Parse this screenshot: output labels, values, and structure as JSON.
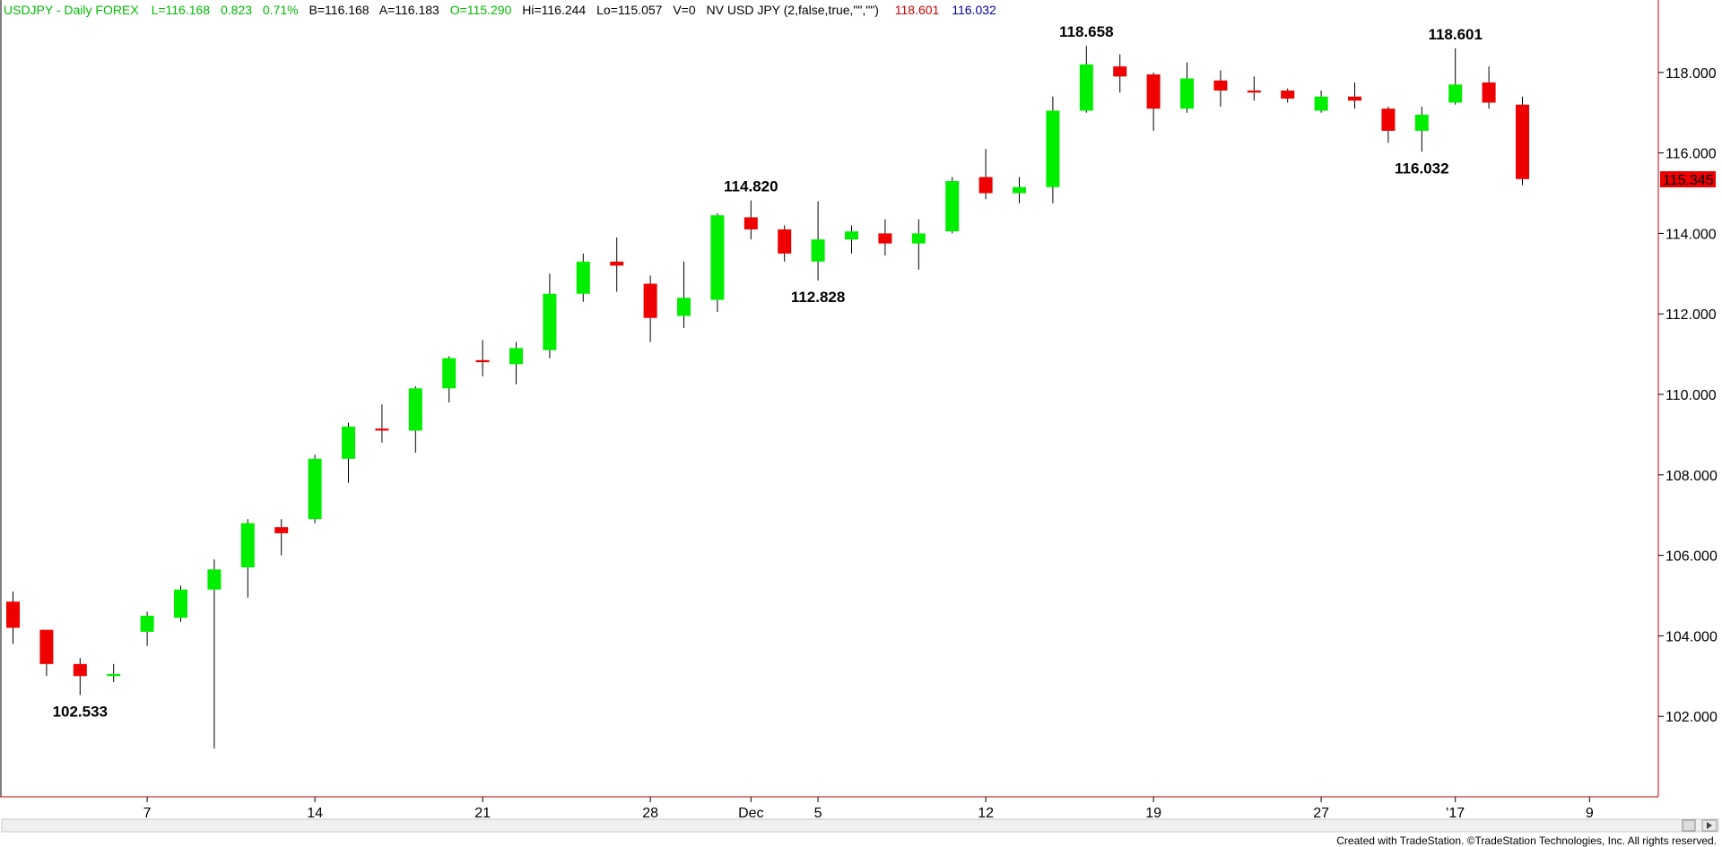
{
  "header": {
    "symbol_desc": "USDJPY - Daily  FOREX",
    "last": "L=116.168",
    "change": "0.823",
    "change_pct": "0.71%",
    "bid": "B=116.168",
    "ask": "A=116.183",
    "open": "O=115.290",
    "high": "Hi=116.244",
    "low": "Lo=115.057",
    "volume": "V=0",
    "indicator": "NV USD JPY (2,false,true,\"\",\"\")",
    "ind_high": "118.601",
    "ind_low": "116.032"
  },
  "footer": {
    "credit": "Created with TradeStation. ©TradeStation Technologies, Inc. All rights reserved."
  },
  "colors": {
    "up": "#00ee00",
    "down": "#ee0000",
    "header_text": "#00bb00",
    "ind_high": "#cc0000",
    "ind_low": "#000099",
    "axis_line": "#cc0000",
    "price_tag_bg": "#ee0000",
    "price_tag_text": "#ffffff"
  },
  "chart_data": {
    "type": "candlestick",
    "symbol": "USDJPY",
    "interval": "Daily",
    "ylim": [
      100.0,
      119.8
    ],
    "yticks": [
      "102.000",
      "104.000",
      "106.000",
      "108.000",
      "110.000",
      "112.000",
      "114.000",
      "116.000",
      "118.000"
    ],
    "xlabels": [
      {
        "bar": 4,
        "label": "7"
      },
      {
        "bar": 9,
        "label": "14"
      },
      {
        "bar": 14,
        "label": "21"
      },
      {
        "bar": 19,
        "label": "28"
      },
      {
        "bar": 22,
        "label": "Dec"
      },
      {
        "bar": 24,
        "label": "5"
      },
      {
        "bar": 29,
        "label": "12"
      },
      {
        "bar": 34,
        "label": "19"
      },
      {
        "bar": 39,
        "label": "27"
      },
      {
        "bar": 43,
        "label": "'17"
      },
      {
        "bar": 47,
        "label": "9"
      }
    ],
    "last_price": "115.345",
    "bars": [
      {
        "o": 104.85,
        "h": 105.1,
        "l": 103.8,
        "c": 104.2
      },
      {
        "o": 104.15,
        "h": 104.15,
        "l": 103.0,
        "c": 103.3
      },
      {
        "o": 103.3,
        "h": 103.45,
        "l": 102.53,
        "c": 103.0
      },
      {
        "o": 103.0,
        "h": 103.3,
        "l": 102.85,
        "c": 103.05
      },
      {
        "o": 104.1,
        "h": 104.6,
        "l": 103.75,
        "c": 104.5
      },
      {
        "o": 104.45,
        "h": 105.25,
        "l": 104.35,
        "c": 105.15
      },
      {
        "o": 105.15,
        "h": 105.9,
        "l": 101.2,
        "c": 105.65
      },
      {
        "o": 105.7,
        "h": 106.9,
        "l": 104.95,
        "c": 106.8
      },
      {
        "o": 106.7,
        "h": 106.9,
        "l": 106.0,
        "c": 106.55
      },
      {
        "o": 106.9,
        "h": 108.5,
        "l": 106.8,
        "c": 108.4
      },
      {
        "o": 108.4,
        "h": 109.3,
        "l": 107.8,
        "c": 109.2
      },
      {
        "o": 109.15,
        "h": 109.75,
        "l": 108.8,
        "c": 109.1
      },
      {
        "o": 109.1,
        "h": 110.2,
        "l": 108.55,
        "c": 110.15
      },
      {
        "o": 110.15,
        "h": 110.95,
        "l": 109.8,
        "c": 110.9
      },
      {
        "o": 110.85,
        "h": 111.35,
        "l": 110.45,
        "c": 110.8
      },
      {
        "o": 110.75,
        "h": 111.3,
        "l": 110.25,
        "c": 111.15
      },
      {
        "o": 111.1,
        "h": 113.0,
        "l": 110.9,
        "c": 112.5
      },
      {
        "o": 112.5,
        "h": 113.5,
        "l": 112.3,
        "c": 113.3
      },
      {
        "o": 113.3,
        "h": 113.9,
        "l": 112.55,
        "c": 113.2
      },
      {
        "o": 112.75,
        "h": 112.95,
        "l": 111.3,
        "c": 111.9
      },
      {
        "o": 111.95,
        "h": 113.3,
        "l": 111.65,
        "c": 112.4
      },
      {
        "o": 112.35,
        "h": 114.5,
        "l": 112.05,
        "c": 114.45
      },
      {
        "o": 114.4,
        "h": 114.82,
        "l": 113.85,
        "c": 114.1
      },
      {
        "o": 114.1,
        "h": 114.2,
        "l": 113.3,
        "c": 113.5
      },
      {
        "o": 113.3,
        "h": 114.8,
        "l": 112.83,
        "c": 113.85
      },
      {
        "o": 113.85,
        "h": 114.2,
        "l": 113.5,
        "c": 114.05
      },
      {
        "o": 114.0,
        "h": 114.35,
        "l": 113.45,
        "c": 113.75
      },
      {
        "o": 113.75,
        "h": 114.35,
        "l": 113.1,
        "c": 114.0
      },
      {
        "o": 114.05,
        "h": 115.4,
        "l": 114.0,
        "c": 115.3
      },
      {
        "o": 115.4,
        "h": 116.1,
        "l": 114.85,
        "c": 115.0
      },
      {
        "o": 115.0,
        "h": 115.4,
        "l": 114.75,
        "c": 115.15
      },
      {
        "o": 115.15,
        "h": 117.4,
        "l": 114.75,
        "c": 117.05
      },
      {
        "o": 117.05,
        "h": 118.66,
        "l": 117.0,
        "c": 118.2
      },
      {
        "o": 118.15,
        "h": 118.45,
        "l": 117.5,
        "c": 117.9
      },
      {
        "o": 117.95,
        "h": 118.0,
        "l": 116.55,
        "c": 117.1
      },
      {
        "o": 117.1,
        "h": 118.25,
        "l": 117.0,
        "c": 117.85
      },
      {
        "o": 117.8,
        "h": 118.05,
        "l": 117.15,
        "c": 117.55
      },
      {
        "o": 117.55,
        "h": 117.9,
        "l": 117.3,
        "c": 117.5
      },
      {
        "o": 117.55,
        "h": 117.6,
        "l": 117.25,
        "c": 117.35
      },
      {
        "o": 117.05,
        "h": 117.55,
        "l": 117.0,
        "c": 117.4
      },
      {
        "o": 117.4,
        "h": 117.75,
        "l": 117.1,
        "c": 117.3
      },
      {
        "o": 117.1,
        "h": 117.15,
        "l": 116.25,
        "c": 116.55
      },
      {
        "o": 116.55,
        "h": 117.15,
        "l": 116.03,
        "c": 116.95
      },
      {
        "o": 117.25,
        "h": 118.6,
        "l": 117.2,
        "c": 117.7
      },
      {
        "o": 117.75,
        "h": 118.15,
        "l": 117.1,
        "c": 117.25
      },
      {
        "o": 117.2,
        "h": 117.4,
        "l": 115.2,
        "c": 115.35
      }
    ],
    "annotations": [
      {
        "bar": 2,
        "text": "102.533",
        "pos": "below"
      },
      {
        "bar": 22,
        "text": "114.820",
        "pos": "above"
      },
      {
        "bar": 24,
        "text": "112.828",
        "pos": "below"
      },
      {
        "bar": 32,
        "text": "118.658",
        "pos": "above"
      },
      {
        "bar": 42,
        "text": "116.032",
        "pos": "below"
      },
      {
        "bar": 43,
        "text": "118.601",
        "pos": "above"
      }
    ]
  }
}
